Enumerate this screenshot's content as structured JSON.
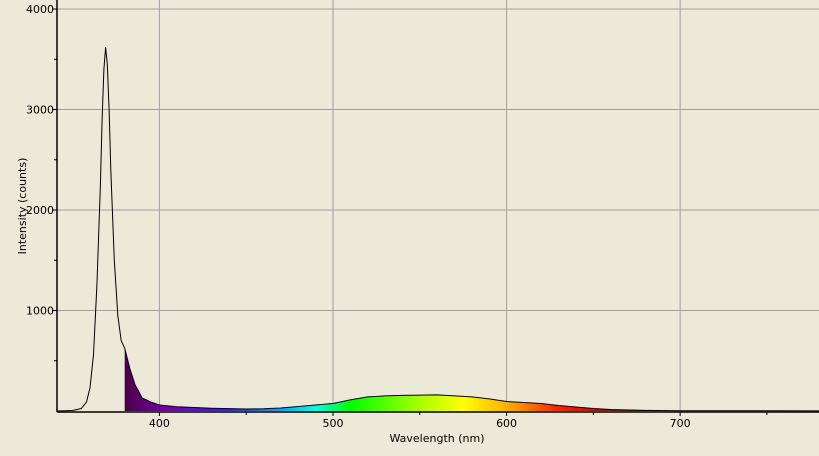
{
  "chart_data": {
    "type": "area",
    "title": "",
    "xlabel": "Wavelength (nm)",
    "ylabel": "Intensity (counts)",
    "xlim": [
      341,
      780
    ],
    "ylim": [
      0,
      4090
    ],
    "x_ticks": [
      400,
      500,
      600,
      700
    ],
    "x_minor_ticks": [
      450,
      550,
      650,
      750
    ],
    "y_ticks": [
      1000,
      2000,
      3000,
      4000
    ],
    "y_minor_ticks": [
      500,
      1500,
      2500,
      3500
    ],
    "grid": true,
    "line_color": "#000000",
    "background": "#ece9d8",
    "grid_color": "#a0a0a0",
    "fill_start_nm": 380,
    "fill_colors": [
      {
        "nm": 380,
        "color": "#4a0048"
      },
      {
        "nm": 405,
        "color": "#7a00b0"
      },
      {
        "nm": 440,
        "color": "#3a1cff"
      },
      {
        "nm": 470,
        "color": "#00a8ff"
      },
      {
        "nm": 490,
        "color": "#00ffe0"
      },
      {
        "nm": 510,
        "color": "#00ff00"
      },
      {
        "nm": 550,
        "color": "#a8ff00"
      },
      {
        "nm": 575,
        "color": "#ffff00"
      },
      {
        "nm": 600,
        "color": "#ffb000"
      },
      {
        "nm": 630,
        "color": "#ff2000"
      },
      {
        "nm": 660,
        "color": "#c00000"
      },
      {
        "nm": 700,
        "color": "#300000"
      }
    ],
    "x": [
      341,
      350,
      355,
      358,
      360,
      362,
      364,
      366,
      367,
      368,
      369,
      370,
      371,
      372,
      374,
      376,
      378,
      380,
      383,
      386,
      390,
      395,
      400,
      410,
      420,
      430,
      440,
      450,
      460,
      470,
      480,
      490,
      500,
      510,
      520,
      530,
      540,
      550,
      560,
      570,
      580,
      590,
      600,
      610,
      620,
      630,
      640,
      650,
      660,
      670,
      680,
      700,
      720,
      750,
      780
    ],
    "values": [
      0,
      5,
      25,
      90,
      230,
      560,
      1250,
      2250,
      2900,
      3400,
      3620,
      3450,
      3000,
      2400,
      1500,
      950,
      700,
      625,
      420,
      260,
      130,
      90,
      60,
      42,
      35,
      28,
      24,
      20,
      22,
      30,
      45,
      60,
      75,
      110,
      140,
      150,
      155,
      158,
      160,
      150,
      140,
      120,
      95,
      85,
      75,
      55,
      40,
      25,
      15,
      10,
      6,
      3,
      2,
      2,
      1
    ]
  }
}
